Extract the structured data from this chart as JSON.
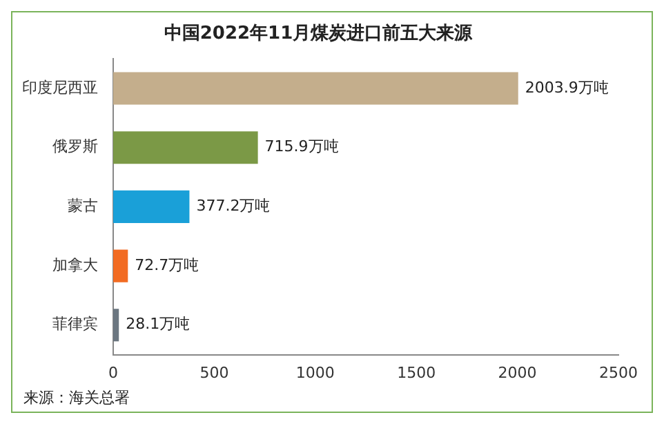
{
  "chart_data": {
    "type": "bar",
    "orientation": "horizontal",
    "title": "中国2022年11月煤炭进口前五大来源",
    "categories": [
      "印度尼西亚",
      "俄罗斯",
      "蒙古",
      "加拿大",
      "菲律宾"
    ],
    "values": [
      2003.9,
      715.9,
      377.2,
      72.7,
      28.1
    ],
    "colors": [
      "#c4ae8c",
      "#7b9946",
      "#1aa0d8",
      "#f26b22",
      "#6b7680"
    ],
    "value_labels": [
      "2003.9万吨",
      "715.9万吨",
      "377.2万吨",
      "72.7万吨",
      "28.1万吨"
    ],
    "xlim": [
      0,
      2500
    ],
    "xticks": [
      0,
      500,
      1000,
      1500,
      2000,
      2500
    ],
    "grid": false,
    "legend": false,
    "annotations": [
      "来源：海关总署"
    ]
  }
}
